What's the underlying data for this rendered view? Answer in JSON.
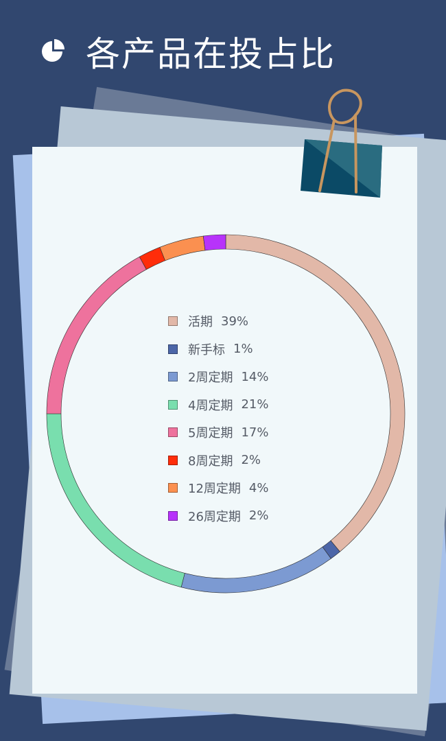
{
  "header": {
    "title": "各产品在投占比",
    "icon": "pie-chart-icon"
  },
  "colors": {
    "background": "#31476f",
    "paper": "#f1f8fa",
    "clip": "#1f5f77",
    "clip_wire": "#c8965f"
  },
  "chart_data": {
    "type": "pie",
    "title": "各产品在投占比",
    "donut": true,
    "legend_position": "center",
    "series": [
      {
        "name": "活期",
        "value": 39,
        "label": "39%",
        "color": "#e2b8a8"
      },
      {
        "name": "新手标",
        "value": 1,
        "label": "1%",
        "color": "#4c66a8"
      },
      {
        "name": "2周定期",
        "value": 14,
        "label": "14%",
        "color": "#7c9ad2"
      },
      {
        "name": "4周定期",
        "value": 21,
        "label": "21%",
        "color": "#79deae"
      },
      {
        "name": "5周定期",
        "value": 17,
        "label": "17%",
        "color": "#ee729d"
      },
      {
        "name": "8周定期",
        "value": 2,
        "label": "2%",
        "color": "#ff2d0a"
      },
      {
        "name": "12周定期",
        "value": 4,
        "label": "4%",
        "color": "#fb9050"
      },
      {
        "name": "26周定期",
        "value": 2,
        "label": "2%",
        "color": "#b733fa"
      }
    ]
  }
}
